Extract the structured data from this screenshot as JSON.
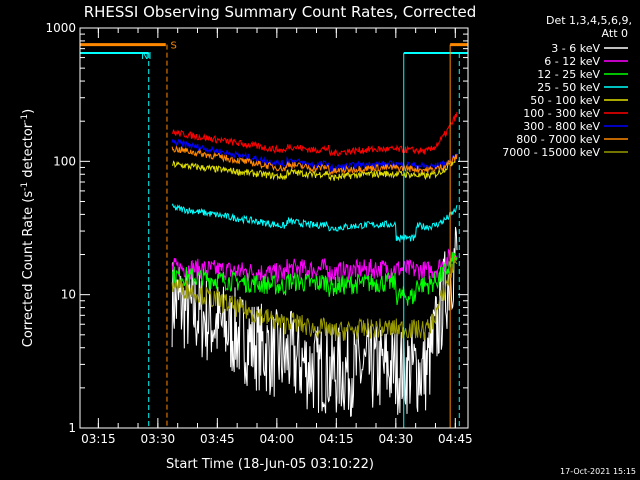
{
  "chart_data": {
    "type": "line",
    "title": "RHESSI Observing Summary Count Rates, Corrected",
    "xlabel": "Start Time (18-Jun-05 03:10:22)",
    "ylabel_main": "Corrected Count Rate (s",
    "ylabel_sup1": "-1",
    "ylabel_mid": " detector",
    "ylabel_sup2": "-1",
    "ylabel_end": ")",
    "yscale": "log",
    "ylim": [
      1,
      1000
    ],
    "xlim_minutes": [
      10.37,
      48.2
    ],
    "x_tick_labels": [
      "03:15",
      "03:30",
      "03:45",
      "04:00",
      "04:15",
      "04:30",
      "04:45"
    ],
    "x_tick_minutes": [
      15,
      30,
      45,
      60,
      75,
      90,
      105
    ],
    "y_tick_labels": [
      "1",
      "10",
      "100",
      "1000"
    ],
    "y_tick_values": [
      1,
      10,
      100,
      1000
    ],
    "legend_header": [
      "Det 1,3,4,5,6,9,",
      "Att 0"
    ],
    "series": [
      {
        "name": "3 - 6 keV",
        "color": "#ffffff",
        "values_start": 9,
        "values_mid": 2.5,
        "values_end": 22
      },
      {
        "name": "6 - 12 keV",
        "color": "#ff00ff",
        "values_start": 16,
        "values_mid": 14,
        "values_end": 22
      },
      {
        "name": "12 - 25 keV",
        "color": "#00ff00",
        "values_start": 14,
        "values_mid": 11,
        "values_end": 20
      },
      {
        "name": "25 - 50 keV",
        "color": "#00ffff",
        "values_start": 45,
        "values_mid": 30,
        "values_end": 45
      },
      {
        "name": "50 - 100 keV",
        "color": "#e0e000",
        "values_start": 95,
        "values_mid": 72,
        "values_end": 110
      },
      {
        "name": "100 - 300 keV",
        "color": "#ff0000",
        "values_start": 165,
        "values_mid": 110,
        "values_end": 230
      },
      {
        "name": "300 - 800 keV",
        "color": "#0000ff",
        "values_start": 140,
        "values_mid": 85,
        "values_end": 110
      },
      {
        "name": "800 - 7000 keV",
        "color": "#ff8800",
        "values_start": 125,
        "values_mid": 80,
        "values_end": 110
      },
      {
        "name": "7000 - 15000 keV",
        "color": "#999900",
        "values_start": 12,
        "values_mid": 5,
        "values_end": 20
      }
    ],
    "flags": [
      {
        "label": "S",
        "color": "#ff8800",
        "level": 750
      },
      {
        "label": "NI",
        "color": "#00ffff",
        "level": 650
      }
    ],
    "footer_date": "17-Oct-2021 15:15"
  }
}
